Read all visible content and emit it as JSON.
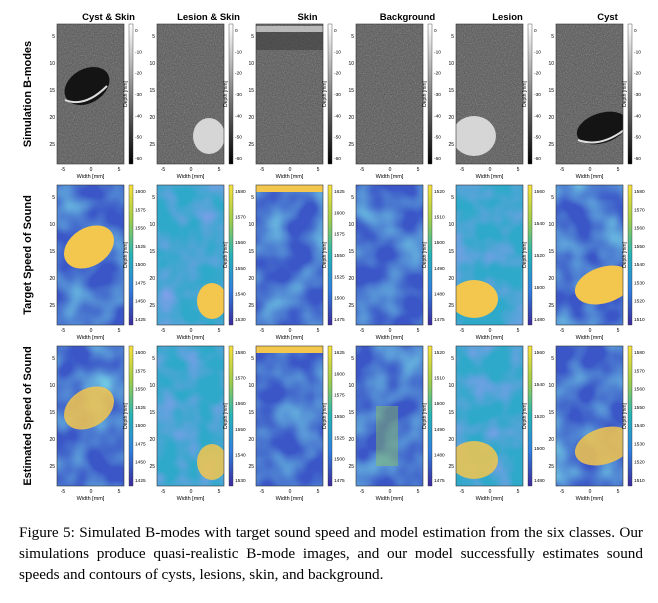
{
  "columns": [
    "Cyst & Skin",
    "Lesion & Skin",
    "Skin",
    "Background",
    "Lesion",
    "Cyst"
  ],
  "rows": [
    "Simulation B-modes",
    "Target Speed of Sound",
    "Estimated Speed of Sound"
  ],
  "axes": {
    "x_label": "Width [mm]",
    "y_label": "Depth [mm]",
    "x_ticks": [
      "-5",
      "0",
      "5"
    ],
    "y_ticks": [
      "5",
      "10",
      "15",
      "20",
      "25"
    ]
  },
  "bmode_colorbar_ticks": [
    "0",
    "-10",
    "-20",
    "-30",
    "-40",
    "-50",
    "-60"
  ],
  "sos_colorbar_ticks": [
    [
      "1600",
      "1575",
      "1550",
      "1525",
      "1500",
      "1475",
      "1450",
      "1425"
    ],
    [
      "1580",
      "1570",
      "1560",
      "1550",
      "1540",
      "1530"
    ],
    [
      "1625",
      "1600",
      "1575",
      "1550",
      "1525",
      "1500",
      "1475"
    ],
    [
      "1520",
      "1510",
      "1500",
      "1490",
      "1480",
      "1475"
    ],
    [
      "1560",
      "1540",
      "1520",
      "1500",
      "1480"
    ],
    [
      "1580",
      "1570",
      "1560",
      "1550",
      "1540",
      "1530",
      "1520",
      "1510"
    ]
  ],
  "colors": {
    "sos_low": "#3a56c7",
    "sos_mid": "#2ea9c9",
    "sos_high": "#f3c64d",
    "bmode_dark": "#141414",
    "bmode_light": "#e9e9e9"
  },
  "caption": {
    "label": "Figure 5:",
    "text": "Simulated B-modes with target sound speed and model estimation from the six classes. Our simulations produce quasi-realistic B-mode images, and our model successfully estimates sound speeds and contours of cysts, lesions, skin, and background."
  }
}
